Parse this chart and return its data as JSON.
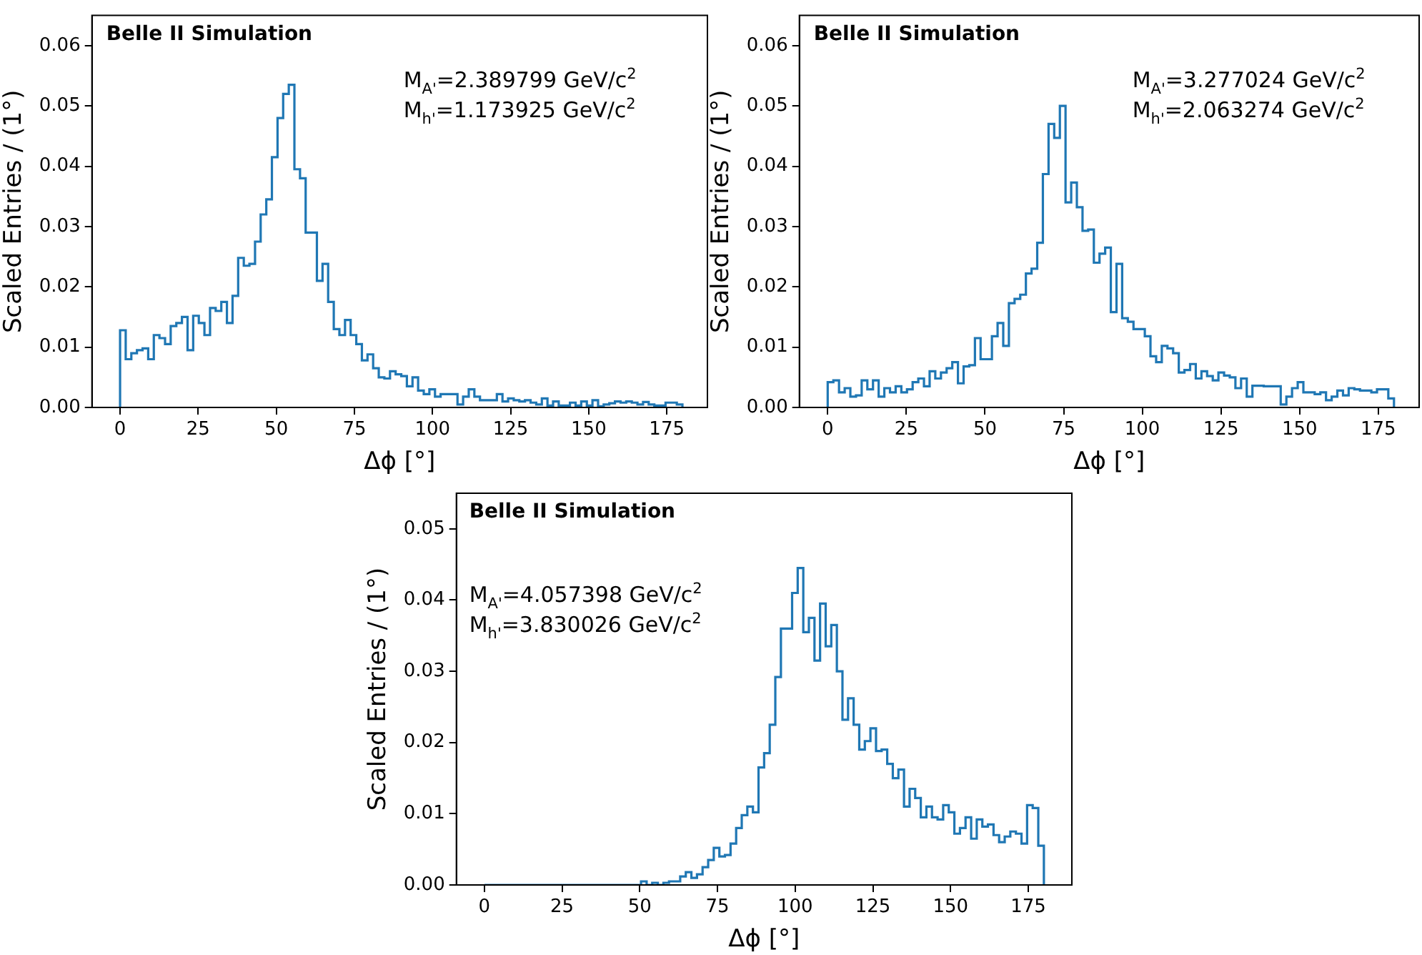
{
  "chart_data": [
    {
      "type": "histogram",
      "xlabel": "Δϕ [°]",
      "ylabel": "Scaled Entries / (1°)",
      "color": "#1f77b4",
      "annotations": [
        "Belle II Simulation",
        "M$_{A'}$=2.389799 GeV/c$^{2}$",
        "M$_{h'}$=1.173925 GeV/c$^{2}$"
      ],
      "xlim": [
        -9,
        188
      ],
      "ylim": [
        0,
        0.065
      ],
      "xticks": [
        0,
        25,
        50,
        75,
        100,
        125,
        150,
        175
      ],
      "yticks": [
        {
          "value": 0,
          "label": "0.00"
        },
        {
          "value": 0.01,
          "label": "0.01"
        },
        {
          "value": 0.02,
          "label": "0.02"
        },
        {
          "value": 0.03,
          "label": "0.03"
        },
        {
          "value": 0.04,
          "label": "0.04"
        },
        {
          "value": 0.05,
          "label": "0.05"
        },
        {
          "value": 0.06,
          "label": "0.06"
        }
      ],
      "bins": [
        0,
        1.8,
        3.6,
        5.4,
        7.2,
        9,
        10.8,
        12.6,
        14.4,
        16.2,
        18,
        19.8,
        21.6,
        23.4,
        25.2,
        27,
        28.8,
        30.6,
        32.4,
        34.2,
        36,
        37.8,
        39.6,
        41.4,
        43.2,
        45,
        46.8,
        48.6,
        50.4,
        52.2,
        54,
        55.8,
        57.6,
        59.4,
        61.2,
        63,
        64.8,
        66.6,
        68.4,
        70.2,
        72,
        73.8,
        75.6,
        77.4,
        79.2,
        81,
        82.8,
        84.6,
        86.4,
        88.2,
        90,
        91.8,
        93.6,
        95.4,
        97.2,
        99,
        100.8,
        102.6,
        104.4,
        106.2,
        108,
        109.8,
        111.6,
        113.4,
        115.2,
        117,
        118.8,
        120.6,
        122.4,
        124.2,
        126,
        127.8,
        129.6,
        131.4,
        133.2,
        135,
        136.8,
        138.6,
        140.4,
        142.2,
        144,
        145.8,
        147.6,
        149.4,
        151.2,
        153,
        154.8,
        156.6,
        158.4,
        160.2,
        162,
        163.8,
        165.6,
        167.4,
        169.2,
        171,
        172.8,
        174.6,
        176.4,
        178.2,
        180
      ],
      "values": [
        0.0128,
        0.008,
        0.009,
        0.0095,
        0.0098,
        0.008,
        0.012,
        0.0115,
        0.0105,
        0.0135,
        0.014,
        0.015,
        0.0095,
        0.0152,
        0.014,
        0.012,
        0.0165,
        0.016,
        0.0175,
        0.014,
        0.0185,
        0.0248,
        0.0235,
        0.0238,
        0.0275,
        0.032,
        0.0345,
        0.0415,
        0.048,
        0.052,
        0.0535,
        0.0395,
        0.038,
        0.029,
        0.029,
        0.021,
        0.0238,
        0.0175,
        0.013,
        0.012,
        0.0145,
        0.012,
        0.0105,
        0.0078,
        0.0088,
        0.0065,
        0.005,
        0.0048,
        0.006,
        0.0055,
        0.0052,
        0.0035,
        0.005,
        0.0028,
        0.0022,
        0.003,
        0.0018,
        0.0022,
        0.0022,
        0.0022,
        0.0005,
        0.0018,
        0.003,
        0.0018,
        0.0012,
        0.0012,
        0.0012,
        0.0022,
        0.001,
        0.0015,
        0.0012,
        0.001,
        0.0012,
        0.0008,
        0.0005,
        0.0015,
        0.0003,
        0.001,
        0.0003,
        0.0003,
        0.0008,
        0.0003,
        0.001,
        0.0003,
        0.0012,
        0.0002,
        0.0005,
        0.0007,
        0.001,
        0.0008,
        0.001,
        0.0008,
        0.0005,
        0.0009,
        0.0005,
        0.0003,
        0.0003,
        0.0008,
        0.0008,
        0.0005
      ]
    },
    {
      "type": "histogram",
      "xlabel": "Δϕ [°]",
      "ylabel": "Scaled Entries / (1°)",
      "color": "#1f77b4",
      "annotations": [
        "Belle II Simulation",
        "M$_{A'}$=3.277024 GeV/c$^{2}$",
        "M$_{h'}$=2.063274 GeV/c$^{2}$"
      ],
      "xlim": [
        -9,
        188
      ],
      "ylim": [
        0,
        0.065
      ],
      "xticks": [
        0,
        25,
        50,
        75,
        100,
        125,
        150,
        175
      ],
      "yticks": [
        {
          "value": 0,
          "label": "0.00"
        },
        {
          "value": 0.01,
          "label": "0.01"
        },
        {
          "value": 0.02,
          "label": "0.02"
        },
        {
          "value": 0.03,
          "label": "0.03"
        },
        {
          "value": 0.04,
          "label": "0.04"
        },
        {
          "value": 0.05,
          "label": "0.05"
        },
        {
          "value": 0.06,
          "label": "0.06"
        }
      ],
      "bins": [
        0,
        1.8,
        3.6,
        5.4,
        7.2,
        9,
        10.8,
        12.6,
        14.4,
        16.2,
        18,
        19.8,
        21.6,
        23.4,
        25.2,
        27,
        28.8,
        30.6,
        32.4,
        34.2,
        36,
        37.8,
        39.6,
        41.4,
        43.2,
        45,
        46.8,
        48.6,
        50.4,
        52.2,
        54,
        55.8,
        57.6,
        59.4,
        61.2,
        63,
        64.8,
        66.6,
        68.4,
        70.2,
        72,
        73.8,
        75.6,
        77.4,
        79.2,
        81,
        82.8,
        84.6,
        86.4,
        88.2,
        90,
        91.8,
        93.6,
        95.4,
        97.2,
        99,
        100.8,
        102.6,
        104.4,
        106.2,
        108,
        109.8,
        111.6,
        113.4,
        115.2,
        117,
        118.8,
        120.6,
        122.4,
        124.2,
        126,
        127.8,
        129.6,
        131.4,
        133.2,
        135,
        136.8,
        138.6,
        140.4,
        142.2,
        144,
        145.8,
        147.6,
        149.4,
        151.2,
        153,
        154.8,
        156.6,
        158.4,
        160.2,
        162,
        163.8,
        165.6,
        167.4,
        169.2,
        171,
        172.8,
        174.6,
        176.4,
        178.2,
        180
      ],
      "values": [
        0.0042,
        0.0045,
        0.0025,
        0.0032,
        0.0018,
        0.002,
        0.0045,
        0.003,
        0.0045,
        0.0018,
        0.0032,
        0.0025,
        0.0035,
        0.0025,
        0.003,
        0.0042,
        0.0048,
        0.0035,
        0.006,
        0.0048,
        0.0058,
        0.0065,
        0.0075,
        0.004,
        0.0068,
        0.007,
        0.0115,
        0.008,
        0.008,
        0.0118,
        0.014,
        0.0102,
        0.0173,
        0.018,
        0.0187,
        0.0222,
        0.023,
        0.0273,
        0.0387,
        0.047,
        0.0447,
        0.05,
        0.034,
        0.0373,
        0.0332,
        0.0293,
        0.0295,
        0.024,
        0.0255,
        0.0265,
        0.0158,
        0.0238,
        0.0148,
        0.0142,
        0.013,
        0.013,
        0.0118,
        0.0085,
        0.0075,
        0.0102,
        0.0098,
        0.009,
        0.0058,
        0.0062,
        0.0072,
        0.0048,
        0.006,
        0.0052,
        0.0045,
        0.0058,
        0.0053,
        0.005,
        0.0032,
        0.0048,
        0.0018,
        0.0036,
        0.0036,
        0.0035,
        0.0035,
        0.0035,
        0.0005,
        0.0018,
        0.0032,
        0.0042,
        0.0025,
        0.0025,
        0.0022,
        0.0025,
        0.0012,
        0.0018,
        0.0028,
        0.002,
        0.0032,
        0.003,
        0.0028,
        0.0028,
        0.0025,
        0.003,
        0.003,
        0.0015
      ]
    },
    {
      "type": "histogram",
      "xlabel": "Δϕ [°]",
      "ylabel": "Scaled Entries / (1°)",
      "color": "#1f77b4",
      "annotations": [
        "Belle II Simulation",
        "M$_{A'}$=4.057398 GeV/c$^{2}$",
        "M$_{h'}$=3.830026 GeV/c$^{2}$"
      ],
      "xlim": [
        -9,
        189
      ],
      "ylim": [
        0,
        0.055
      ],
      "xticks": [
        0,
        25,
        50,
        75,
        100,
        125,
        150,
        175
      ],
      "yticks": [
        {
          "value": 0,
          "label": "0.00"
        },
        {
          "value": 0.01,
          "label": "0.01"
        },
        {
          "value": 0.02,
          "label": "0.02"
        },
        {
          "value": 0.03,
          "label": "0.03"
        },
        {
          "value": 0.04,
          "label": "0.04"
        },
        {
          "value": 0.05,
          "label": "0.05"
        }
      ],
      "bins": [
        0,
        1.8,
        3.6,
        5.4,
        7.2,
        9,
        10.8,
        12.6,
        14.4,
        16.2,
        18,
        19.8,
        21.6,
        23.4,
        25.2,
        27,
        28.8,
        30.6,
        32.4,
        34.2,
        36,
        37.8,
        39.6,
        41.4,
        43.2,
        45,
        46.8,
        48.6,
        50.4,
        52.2,
        54,
        55.8,
        57.6,
        59.4,
        61.2,
        63,
        64.8,
        66.6,
        68.4,
        70.2,
        72,
        73.8,
        75.6,
        77.4,
        79.2,
        81,
        82.8,
        84.6,
        86.4,
        88.2,
        90,
        91.8,
        93.6,
        95.4,
        97.2,
        99,
        100.8,
        102.6,
        104.4,
        106.2,
        108,
        109.8,
        111.6,
        113.4,
        115.2,
        117,
        118.8,
        120.6,
        122.4,
        124.2,
        126,
        127.8,
        129.6,
        131.4,
        133.2,
        135,
        136.8,
        138.6,
        140.4,
        142.2,
        144,
        145.8,
        147.6,
        149.4,
        151.2,
        153,
        154.8,
        156.6,
        158.4,
        160.2,
        162,
        163.8,
        165.6,
        167.4,
        169.2,
        171,
        172.8,
        174.6,
        176.4,
        178.2,
        180
      ],
      "values": [
        0,
        0,
        0,
        0,
        0,
        0,
        0,
        0,
        0,
        0,
        0,
        0,
        0,
        0,
        0,
        0,
        0,
        0,
        0,
        0,
        0,
        0,
        0,
        0,
        0,
        0,
        0,
        0,
        0.0005,
        0,
        0.0003,
        0,
        0.0003,
        0.0005,
        0.0005,
        0.0012,
        0.0018,
        0.001,
        0.0015,
        0.0025,
        0.0035,
        0.0052,
        0.004,
        0.0042,
        0.0058,
        0.008,
        0.0098,
        0.011,
        0.0102,
        0.0165,
        0.0185,
        0.0225,
        0.0292,
        0.036,
        0.036,
        0.041,
        0.0445,
        0.0355,
        0.0375,
        0.0315,
        0.0395,
        0.0335,
        0.0365,
        0.03,
        0.0232,
        0.0262,
        0.0225,
        0.019,
        0.0202,
        0.022,
        0.0188,
        0.019,
        0.017,
        0.015,
        0.0162,
        0.011,
        0.0135,
        0.0122,
        0.0095,
        0.011,
        0.0095,
        0.0092,
        0.0112,
        0.0102,
        0.0072,
        0.008,
        0.0095,
        0.0065,
        0.0092,
        0.0082,
        0.0085,
        0.007,
        0.006,
        0.0068,
        0.0075,
        0.0072,
        0.0058,
        0.0112,
        0.0108,
        0.0055
      ]
    }
  ]
}
